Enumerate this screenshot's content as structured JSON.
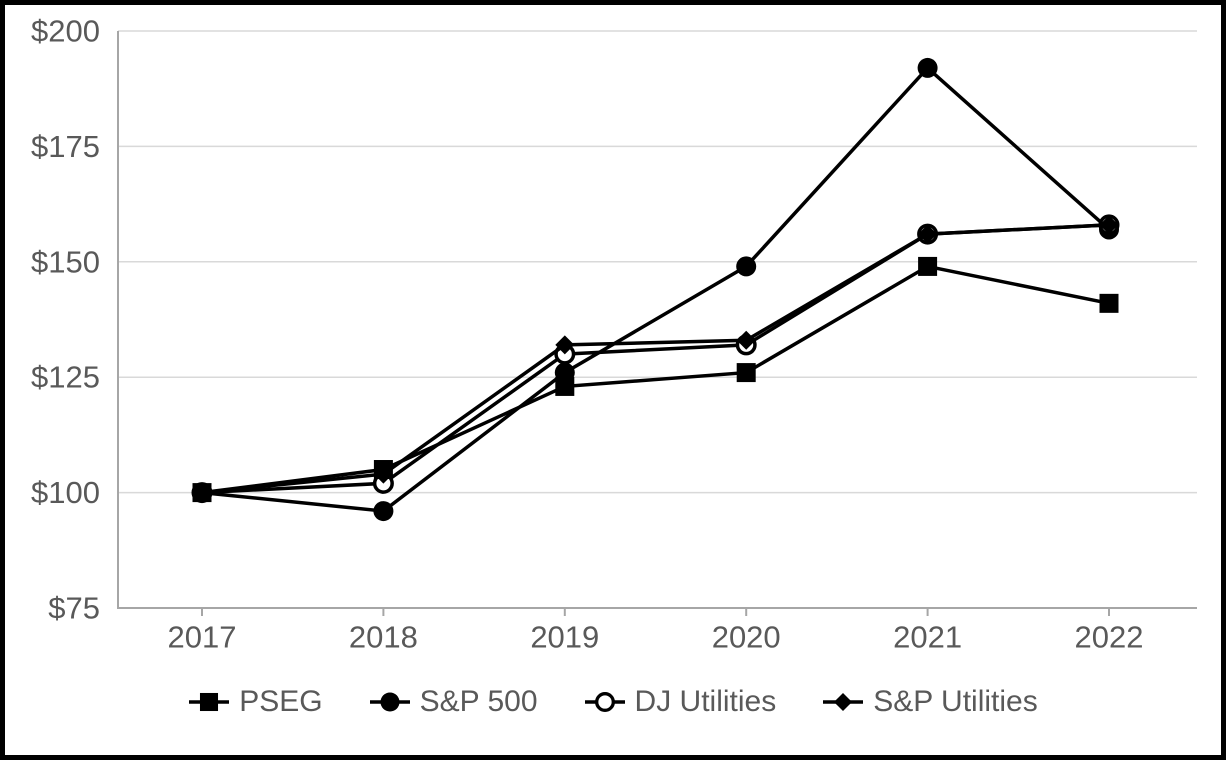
{
  "colors": {
    "frame": "#000000",
    "background": "#ffffff",
    "axis_line": "#a6a6a6",
    "gridline": "#d9d9d9",
    "tick_label": "#595959",
    "legend_label": "#595959",
    "series_color": "#000000",
    "open_marker_fill": "#ffffff"
  },
  "chart_data": {
    "type": "line",
    "title": "",
    "categories": [
      "2017",
      "2018",
      "2019",
      "2020",
      "2021",
      "2022"
    ],
    "y_tick_values": [
      75,
      100,
      125,
      150,
      175,
      200
    ],
    "y_tick_labels": [
      "$75",
      "$100",
      "$125",
      "$150",
      "$175",
      "$200"
    ],
    "ylim": [
      75,
      200
    ],
    "grid": true,
    "legend_position": "bottom-center",
    "series": [
      {
        "name": "PSEG",
        "marker": "square-filled",
        "z": 2,
        "values": [
          100,
          105,
          123,
          126,
          149,
          141
        ]
      },
      {
        "name": "S&P 500",
        "marker": "circle-filled",
        "z": 0,
        "values": [
          100,
          96,
          126,
          149,
          192,
          157
        ]
      },
      {
        "name": "DJ Utilities",
        "marker": "circle-open",
        "z": 1,
        "values": [
          100,
          102,
          130,
          132,
          156,
          158
        ]
      },
      {
        "name": "S&P Utilities",
        "marker": "diamond-filled",
        "z": 3,
        "values": [
          100,
          104,
          132,
          133,
          156,
          158
        ]
      }
    ]
  }
}
